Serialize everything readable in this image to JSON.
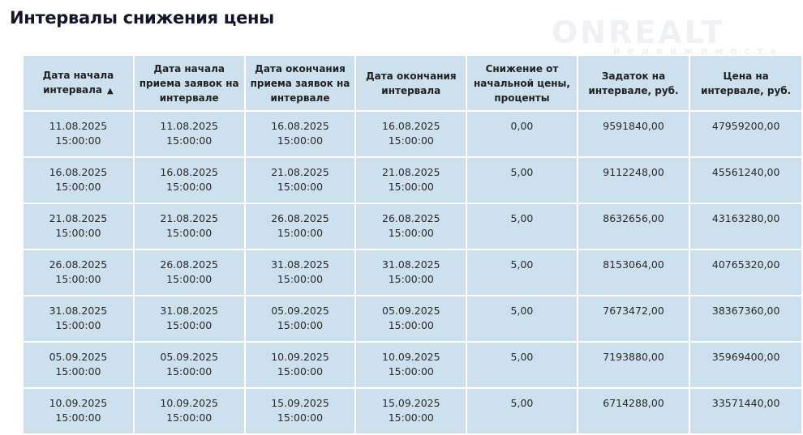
{
  "title": "Интервалы снижения цены",
  "watermark": {
    "brand": "ONREALT",
    "sub": "недвижимость"
  },
  "table": {
    "sort_indicator": "▲",
    "headers": [
      "Дата начала интервала",
      "Дата начала приема заявок на интервале",
      "Дата окончания приема заявок на интервале",
      "Дата окончания интервала",
      "Снижение от начальной цены, проценты",
      "Задаток на интервале, руб.",
      "Цена на интервале, руб."
    ],
    "rows": [
      [
        "11.08.2025 15:00:00",
        "11.08.2025 15:00:00",
        "16.08.2025 15:00:00",
        "16.08.2025 15:00:00",
        "0,00",
        "9591840,00",
        "47959200,00"
      ],
      [
        "16.08.2025 15:00:00",
        "16.08.2025 15:00:00",
        "21.08.2025 15:00:00",
        "21.08.2025 15:00:00",
        "5,00",
        "9112248,00",
        "45561240,00"
      ],
      [
        "21.08.2025 15:00:00",
        "21.08.2025 15:00:00",
        "26.08.2025 15:00:00",
        "26.08.2025 15:00:00",
        "5,00",
        "8632656,00",
        "43163280,00"
      ],
      [
        "26.08.2025 15:00:00",
        "26.08.2025 15:00:00",
        "31.08.2025 15:00:00",
        "31.08.2025 15:00:00",
        "5,00",
        "8153064,00",
        "40765320,00"
      ],
      [
        "31.08.2025 15:00:00",
        "31.08.2025 15:00:00",
        "05.09.2025 15:00:00",
        "05.09.2025 15:00:00",
        "5,00",
        "7673472,00",
        "38367360,00"
      ],
      [
        "05.09.2025 15:00:00",
        "05.09.2025 15:00:00",
        "10.09.2025 15:00:00",
        "10.09.2025 15:00:00",
        "5,00",
        "7193880,00",
        "35969400,00"
      ],
      [
        "10.09.2025 15:00:00",
        "10.09.2025 15:00:00",
        "15.09.2025 15:00:00",
        "15.09.2025 15:00:00",
        "5,00",
        "6714288,00",
        "33571440,00"
      ]
    ]
  }
}
